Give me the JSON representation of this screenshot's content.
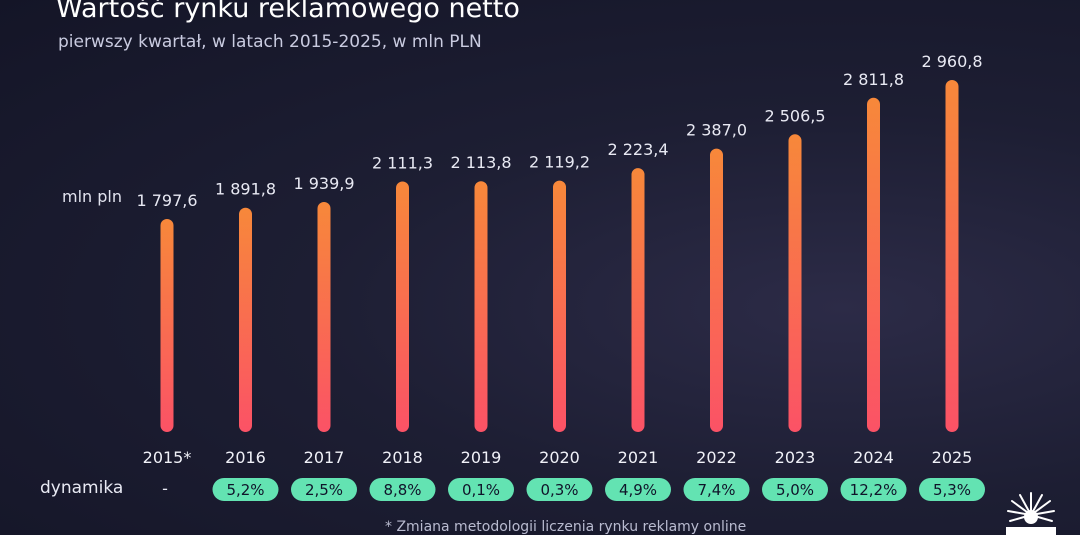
{
  "chart_data": {
    "type": "bar",
    "title": "Wartość rynku reklamowego netto",
    "subtitle": "pierwszy kwartał, w latach 2015-2025, w mln PLN",
    "ylabel": "mln pln",
    "categories": [
      "2015*",
      "2016",
      "2017",
      "2018",
      "2019",
      "2020",
      "2021",
      "2022",
      "2023",
      "2024",
      "2025"
    ],
    "values": [
      1797.6,
      1891.8,
      1939.9,
      2111.3,
      2113.8,
      2119.2,
      2223.4,
      2387.0,
      2506.5,
      2811.8,
      2960.8
    ],
    "value_labels": [
      "1 797,6",
      "1 891,8",
      "1 939,9",
      "2 111,3",
      "2 113,8",
      "2 119,2",
      "2 223,4",
      "2 387,0",
      "2 506,5",
      "2 811,8",
      "2 960,8"
    ],
    "dynamics_label": "dynamika",
    "dynamics": [
      "-",
      "5,2%",
      "2,5%",
      "8,8%",
      "0,1%",
      "0,3%",
      "4,9%",
      "7,4%",
      "5,0%",
      "12,2%",
      "5,3%"
    ],
    "footnote": "* Zmiana metodologii liczenia rynku reklamy online",
    "bar_gradient": {
      "top": "#f7883a",
      "bottom": "#fb5266"
    },
    "badge_color": "#63e3b2"
  }
}
